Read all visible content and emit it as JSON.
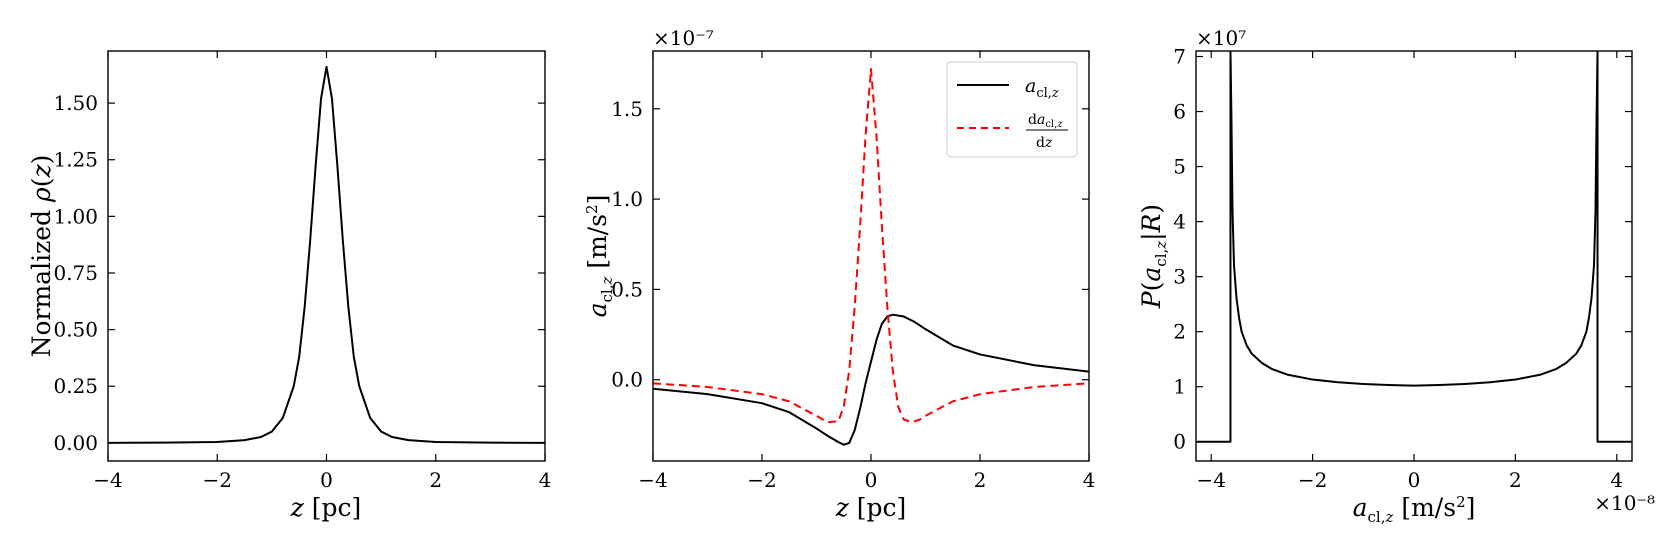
{
  "chart_data": [
    {
      "type": "line",
      "xlabel": "z [pc]",
      "ylabel": "Normalized ρ(z)",
      "xlim": [
        -4,
        4
      ],
      "ylim": [
        -0.08,
        1.73
      ],
      "xticks": [
        -4,
        -2,
        0,
        2,
        4
      ],
      "xticklabels": [
        "−4",
        "−2",
        "0",
        "2",
        "4"
      ],
      "yticks": [
        0,
        0.25,
        0.5,
        0.75,
        1.0,
        1.25,
        1.5
      ],
      "yticklabels": [
        "0.00",
        "0.25",
        "0.50",
        "0.75",
        "1.00",
        "1.25",
        "1.50"
      ],
      "series": [
        {
          "color": "#000000",
          "dash": "solid",
          "x": [
            -4,
            -3,
            -2,
            -1.5,
            -1.2,
            -1.0,
            -0.8,
            -0.6,
            -0.5,
            -0.4,
            -0.3,
            -0.2,
            -0.1,
            0,
            0.1,
            0.2,
            0.3,
            0.4,
            0.5,
            0.6,
            0.8,
            1.0,
            1.2,
            1.5,
            2,
            3,
            4
          ],
          "y": [
            0.0,
            0.001,
            0.004,
            0.012,
            0.026,
            0.05,
            0.11,
            0.25,
            0.38,
            0.6,
            0.89,
            1.22,
            1.52,
            1.66,
            1.52,
            1.22,
            0.89,
            0.6,
            0.38,
            0.25,
            0.11,
            0.05,
            0.026,
            0.012,
            0.004,
            0.001,
            0.0
          ]
        }
      ]
    },
    {
      "type": "line",
      "xlabel": "z [pc]",
      "ylabel": "a_cl,z [m/s²]",
      "offset_text": "×10⁻⁷",
      "xlim": [
        -4,
        4
      ],
      "ylim": [
        -0.45,
        1.82
      ],
      "xticks": [
        -4,
        -2,
        0,
        2,
        4
      ],
      "xticklabels": [
        "−4",
        "−2",
        "0",
        "2",
        "4"
      ],
      "yticks": [
        0,
        0.5,
        1.0,
        1.5
      ],
      "yticklabels": [
        "0.0",
        "0.5",
        "1.0",
        "1.5"
      ],
      "legend": {
        "placement": "top-right",
        "entries": [
          "a_cl,z",
          "da_cl,z / dz"
        ]
      },
      "series": [
        {
          "name": "a_cl,z",
          "color": "#000000",
          "dash": "solid",
          "x": [
            -4,
            -3,
            -2,
            -1.5,
            -1.0,
            -0.8,
            -0.6,
            -0.5,
            -0.4,
            -0.3,
            -0.2,
            -0.1,
            0,
            0.1,
            0.2,
            0.3,
            0.4,
            0.6,
            0.8,
            1.0,
            1.5,
            2,
            3,
            4
          ],
          "y": [
            -0.05,
            -0.08,
            -0.13,
            -0.18,
            -0.27,
            -0.31,
            -0.345,
            -0.36,
            -0.35,
            -0.28,
            -0.16,
            -0.02,
            0.1,
            0.22,
            0.31,
            0.35,
            0.36,
            0.35,
            0.32,
            0.28,
            0.19,
            0.14,
            0.08,
            0.045
          ]
        },
        {
          "name": "da_cl,z / dz",
          "color": "#ff0000",
          "dash": "dashed",
          "x": [
            -4,
            -3,
            -2,
            -1.5,
            -1.0,
            -0.8,
            -0.6,
            -0.5,
            -0.4,
            -0.3,
            -0.2,
            -0.1,
            0,
            0.1,
            0.2,
            0.3,
            0.4,
            0.5,
            0.6,
            0.75,
            0.9,
            1.0,
            1.5,
            2,
            3,
            4
          ],
          "y": [
            -0.02,
            -0.04,
            -0.08,
            -0.12,
            -0.2,
            -0.235,
            -0.23,
            -0.15,
            0.05,
            0.4,
            0.85,
            1.35,
            1.72,
            1.35,
            0.85,
            0.4,
            0.05,
            -0.15,
            -0.22,
            -0.235,
            -0.22,
            -0.2,
            -0.12,
            -0.08,
            -0.04,
            -0.02
          ]
        }
      ]
    },
    {
      "type": "line",
      "xlabel": "a_cl,z [m/s²]",
      "ylabel": "P(a_cl,z|R)",
      "x_offset_text": "×10⁻⁸",
      "y_offset_text": "×10⁷",
      "xlim": [
        -4.3,
        4.3
      ],
      "ylim": [
        -0.35,
        7.1
      ],
      "xticks": [
        -4,
        -2,
        0,
        2,
        4
      ],
      "xticklabels": [
        "−4",
        "−2",
        "0",
        "2",
        "4"
      ],
      "yticks": [
        0,
        1,
        2,
        3,
        4,
        5,
        6,
        7
      ],
      "yticklabels": [
        "0",
        "1",
        "2",
        "3",
        "4",
        "5",
        "6",
        "7"
      ],
      "series": [
        {
          "color": "#000000",
          "dash": "solid",
          "x": [
            -4.3,
            -3.62,
            -3.62,
            -3.6,
            -3.58,
            -3.55,
            -3.5,
            -3.45,
            -3.4,
            -3.3,
            -3.2,
            -3.0,
            -2.8,
            -2.5,
            -2.0,
            -1.5,
            -1.0,
            -0.5,
            0,
            0.5,
            1.0,
            1.5,
            2.0,
            2.5,
            2.8,
            3.0,
            3.2,
            3.3,
            3.4,
            3.45,
            3.5,
            3.55,
            3.58,
            3.6,
            3.62,
            3.62,
            4.3
          ],
          "y": [
            0,
            0,
            7.1,
            5.8,
            4.2,
            3.2,
            2.6,
            2.25,
            2.0,
            1.75,
            1.6,
            1.43,
            1.32,
            1.22,
            1.13,
            1.08,
            1.05,
            1.03,
            1.02,
            1.03,
            1.05,
            1.08,
            1.13,
            1.22,
            1.32,
            1.43,
            1.6,
            1.75,
            2.0,
            2.25,
            2.6,
            3.2,
            4.2,
            5.8,
            7.1,
            0,
            0
          ]
        }
      ]
    }
  ]
}
